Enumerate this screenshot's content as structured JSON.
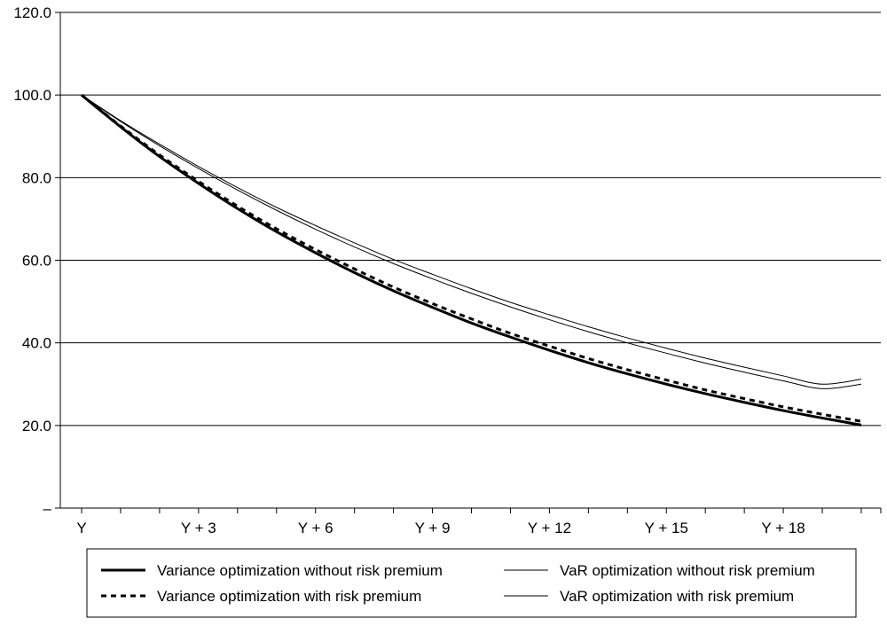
{
  "chart_data": {
    "type": "line",
    "title": "",
    "xlabel": "",
    "ylabel": "",
    "x_ticks": [
      "Y",
      "Y + 3",
      "Y + 6",
      "Y + 9",
      "Y + 12",
      "Y + 15",
      "Y + 18"
    ],
    "y_ticks": [
      "–",
      "20.0",
      "40.0",
      "60.0",
      "80.0",
      "100.0",
      "120.0"
    ],
    "ylim": [
      0,
      120
    ],
    "xlim": [
      0,
      20
    ],
    "grid": "horizontal",
    "legend_position": "bottom",
    "x": [
      0,
      1,
      2,
      3,
      4,
      5,
      6,
      7,
      8,
      9,
      10,
      11,
      12,
      13,
      14,
      15,
      16,
      17,
      18,
      19,
      20
    ],
    "series": [
      {
        "name": "Variance optimization without risk premium",
        "style": "solid-thick",
        "color": "#000000",
        "values": [
          100.0,
          92.3,
          85.1,
          78.6,
          72.5,
          66.9,
          61.8,
          57.0,
          52.6,
          48.6,
          44.8,
          41.4,
          38.2,
          35.2,
          32.5,
          30.0,
          27.7,
          25.6,
          23.6,
          21.8,
          20.1
        ]
      },
      {
        "name": "Variance optimization with risk premium",
        "style": "dashed-thick",
        "color": "#000000",
        "values": [
          100.0,
          92.5,
          85.5,
          79.1,
          73.1,
          67.6,
          62.6,
          57.9,
          53.5,
          49.5,
          45.8,
          42.3,
          39.2,
          36.2,
          33.5,
          31.0,
          28.6,
          26.5,
          24.5,
          22.7,
          21.0
        ]
      },
      {
        "name": "VaR optimization without risk premium",
        "style": "solid-thin",
        "color": "#000000",
        "values": [
          100.0,
          93.6,
          87.7,
          82.2,
          77.0,
          72.1,
          67.5,
          63.2,
          59.2,
          55.5,
          52.0,
          48.7,
          45.6,
          42.7,
          40.0,
          37.5,
          35.1,
          32.9,
          30.8,
          28.9,
          30.0
        ]
      },
      {
        "name": "VaR optimization with risk premium",
        "style": "solid-thin",
        "color": "#000000",
        "values": [
          100.0,
          93.8,
          88.1,
          82.7,
          77.6,
          72.8,
          68.4,
          64.2,
          60.2,
          56.6,
          53.1,
          49.8,
          46.8,
          43.9,
          41.2,
          38.7,
          36.3,
          34.1,
          32.0,
          30.0,
          31.2
        ]
      }
    ]
  }
}
